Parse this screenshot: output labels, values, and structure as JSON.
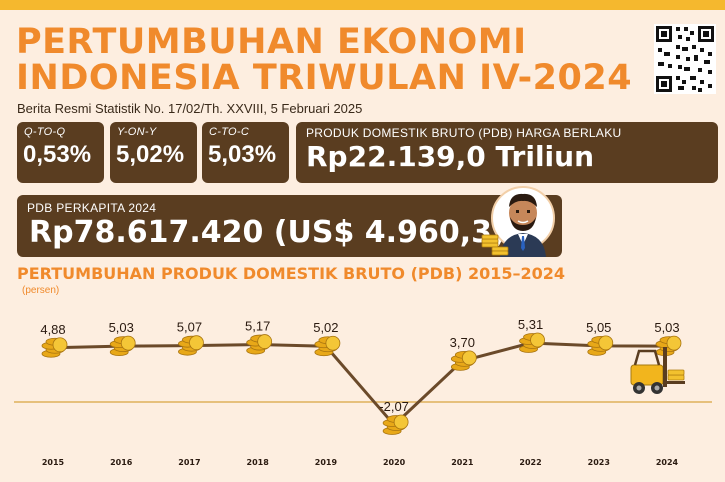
{
  "header": {
    "title_line1": "PERTUMBUHAN EKONOMI",
    "title_line2": "INDONESIA TRIWULAN IV-2024",
    "subtitle": "Berita Resmi Statistik No. 17/02/Th. XXVIII, 5 Februari 2025"
  },
  "indicators": {
    "qtoq": {
      "label": "Q-TO-Q",
      "value": "0,53%"
    },
    "yony": {
      "label": "Y-ON-Y",
      "value": "5,02%"
    },
    "ctoc": {
      "label": "C-TO-C",
      "value": "5,03%"
    }
  },
  "pdb": {
    "label": "PRODUK DOMESTIK BRUTO (PDB) HARGA BERLAKU",
    "value": "Rp22.139,0 Triliun"
  },
  "perkapita": {
    "label": "PDB PERKAPITA 2024",
    "value": "Rp78.617.420 (US$ 4.960,3)"
  },
  "colors": {
    "accent": "#f08a2c",
    "box": "#5a3d20",
    "line": "#6b4a2a",
    "gold": "#e8a818",
    "background": "#fdeee0"
  },
  "icons": [
    "qr-code-icon",
    "businessman-icon",
    "coin-stack-icon",
    "forklift-icon"
  ],
  "chart_data": {
    "type": "line",
    "title": "PERTUMBUHAN PRODUK DOMESTIK BRUTO (PDB) 2015–2024",
    "ylabel": "(persen)",
    "x": [
      "2015",
      "2016",
      "2017",
      "2018",
      "2019",
      "2020",
      "2021",
      "2022",
      "2023",
      "2024"
    ],
    "values": [
      4.88,
      5.03,
      5.07,
      5.17,
      5.02,
      -2.07,
      3.7,
      5.31,
      5.05,
      5.03
    ],
    "labels": [
      "4,88",
      "5,03",
      "5,07",
      "5,17",
      "5,02",
      "-2,07",
      "3,70",
      "5,31",
      "5,05",
      "5,03"
    ],
    "ylim": [
      -2.07,
      5.31
    ],
    "zero_line": true,
    "grid": false
  }
}
